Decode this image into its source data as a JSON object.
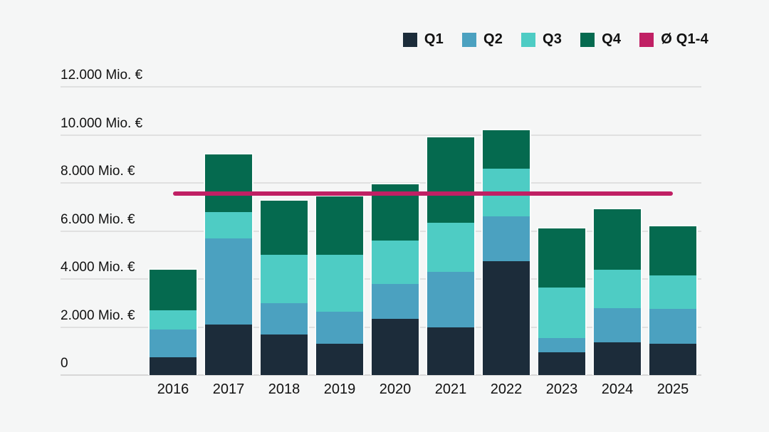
{
  "chart_data": {
    "type": "bar",
    "stacked": true,
    "unit": "Mio. €",
    "categories": [
      "2016",
      "2017",
      "2018",
      "2019",
      "2020",
      "2021",
      "2022",
      "2023",
      "2024",
      "2025"
    ],
    "series": [
      {
        "name": "Q1",
        "color": "#1c2c3a",
        "values": [
          750,
          2100,
          1700,
          1300,
          2350,
          2000,
          4750,
          950,
          1350,
          1300
        ]
      },
      {
        "name": "Q2",
        "color": "#4ba1c0",
        "values": [
          1150,
          3600,
          1300,
          1350,
          1450,
          2300,
          1850,
          600,
          1450,
          1450
        ]
      },
      {
        "name": "Q3",
        "color": "#4eccc4",
        "values": [
          800,
          1100,
          2000,
          2350,
          1800,
          2050,
          2000,
          2100,
          1600,
          1400
        ]
      },
      {
        "name": "Q4",
        "color": "#056a4f",
        "values": [
          1700,
          2400,
          2250,
          2450,
          2350,
          3550,
          1600,
          2450,
          2500,
          2050
        ]
      }
    ],
    "totals": [
      4400,
      9200,
      7250,
      7450,
      7950,
      9900,
      10200,
      6100,
      6900,
      6200
    ],
    "average_line": {
      "label": "Ø Q1-4",
      "color": "#c02064",
      "value": 7555
    },
    "y_axis": {
      "min": 0,
      "max": 12000,
      "tick_step": 2000,
      "ticks": [
        0,
        2000,
        4000,
        6000,
        8000,
        10000,
        12000
      ],
      "tick_labels": [
        "0",
        "2.000 Mio. €",
        "4.000 Mio. €",
        "6.000 Mio. €",
        "8.000 Mio. €",
        "10.000 Mio. €",
        "12.000 Mio. €"
      ]
    },
    "legend": [
      "Q1",
      "Q2",
      "Q3",
      "Q4",
      "Ø Q1-4"
    ],
    "legend_position": "top-right",
    "grid": true
  },
  "colors": {
    "background": "#f5f6f6",
    "gridline": "#e0e0e0",
    "text": "#111111"
  }
}
